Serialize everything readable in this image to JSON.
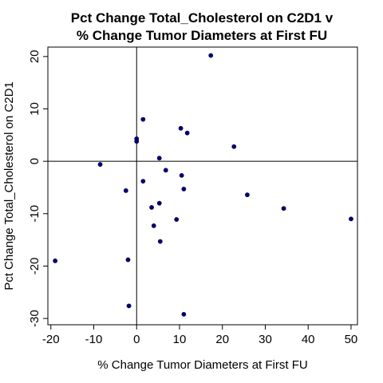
{
  "chart_data": {
    "type": "scatter",
    "title": [
      "Pct Change Total_Cholesterol on C2D1 v",
      "% Change Tumor Diameters at First FU"
    ],
    "xlabel": "% Change Tumor Diameters at First FU",
    "ylabel": "Pct Change Total_Cholesterol on C2D1",
    "xlim": [
      -20.7,
      51.5
    ],
    "ylim": [
      -31.2,
      21.8
    ],
    "xticks": [
      -20,
      -10,
      0,
      10,
      20,
      30,
      40,
      50
    ],
    "yticks": [
      -30,
      -20,
      -10,
      0,
      10,
      20
    ],
    "reference_lines": {
      "x": 0,
      "y": 0
    },
    "point_color": "#000080",
    "points": [
      {
        "x": -19.0,
        "y": -19.0
      },
      {
        "x": -8.5,
        "y": -0.6
      },
      {
        "x": -2.5,
        "y": -5.6
      },
      {
        "x": -2.0,
        "y": -18.8
      },
      {
        "x": -1.8,
        "y": -27.6
      },
      {
        "x": 0.0,
        "y": 4.3
      },
      {
        "x": 0.0,
        "y": 3.8
      },
      {
        "x": 1.5,
        "y": 8.0
      },
      {
        "x": 1.5,
        "y": -3.8
      },
      {
        "x": 3.5,
        "y": -8.8
      },
      {
        "x": 4.0,
        "y": -12.3
      },
      {
        "x": 5.3,
        "y": 0.6
      },
      {
        "x": 5.3,
        "y": -8.0
      },
      {
        "x": 5.5,
        "y": -15.3
      },
      {
        "x": 6.8,
        "y": -1.7
      },
      {
        "x": 9.3,
        "y": -11.1
      },
      {
        "x": 10.3,
        "y": 6.3
      },
      {
        "x": 10.5,
        "y": -2.7
      },
      {
        "x": 11.0,
        "y": -5.3
      },
      {
        "x": 11.0,
        "y": -29.2
      },
      {
        "x": 11.8,
        "y": 5.4
      },
      {
        "x": 17.3,
        "y": 20.2
      },
      {
        "x": 22.7,
        "y": 2.8
      },
      {
        "x": 25.8,
        "y": -6.4
      },
      {
        "x": 34.3,
        "y": -9.0
      },
      {
        "x": 50.0,
        "y": -11.0
      }
    ]
  }
}
